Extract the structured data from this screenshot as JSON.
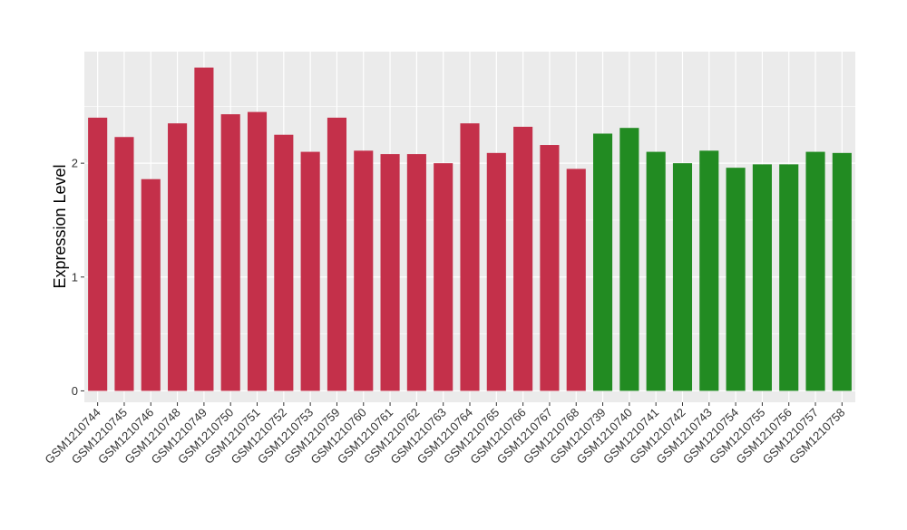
{
  "chart_data": {
    "type": "bar",
    "ylabel": "Expression Level",
    "xlabel": "",
    "ylim": [
      -0.1,
      2.98
    ],
    "yticks": [
      0,
      1,
      2
    ],
    "grid": true,
    "categories": [
      "GSM1210744",
      "GSM1210745",
      "GSM1210746",
      "GSM1210748",
      "GSM1210749",
      "GSM1210750",
      "GSM1210751",
      "GSM1210752",
      "GSM1210753",
      "GSM1210759",
      "GSM1210760",
      "GSM1210761",
      "GSM1210762",
      "GSM1210763",
      "GSM1210764",
      "GSM1210765",
      "GSM1210766",
      "GSM1210767",
      "GSM1210768",
      "GSM1210739",
      "GSM1210740",
      "GSM1210741",
      "GSM1210742",
      "GSM1210743",
      "GSM1210754",
      "GSM1210755",
      "GSM1210756",
      "GSM1210757",
      "GSM1210758"
    ],
    "values": [
      2.4,
      2.23,
      1.86,
      2.35,
      2.84,
      2.43,
      2.45,
      2.25,
      2.1,
      2.4,
      2.11,
      2.08,
      2.08,
      2.0,
      2.35,
      2.09,
      2.32,
      2.16,
      1.95,
      2.26,
      2.31,
      2.1,
      2.0,
      2.11,
      1.96,
      1.99,
      1.99,
      2.1,
      2.09
    ],
    "groups": [
      "a",
      "a",
      "a",
      "a",
      "a",
      "a",
      "a",
      "a",
      "a",
      "a",
      "a",
      "a",
      "a",
      "a",
      "a",
      "a",
      "a",
      "a",
      "a",
      "b",
      "b",
      "b",
      "b",
      "b",
      "b",
      "b",
      "b",
      "b",
      "b"
    ],
    "colors": {
      "a": "#c4304a",
      "b": "#228b22"
    },
    "panel_background": "#ebebeb",
    "grid_color": "#ffffff"
  }
}
